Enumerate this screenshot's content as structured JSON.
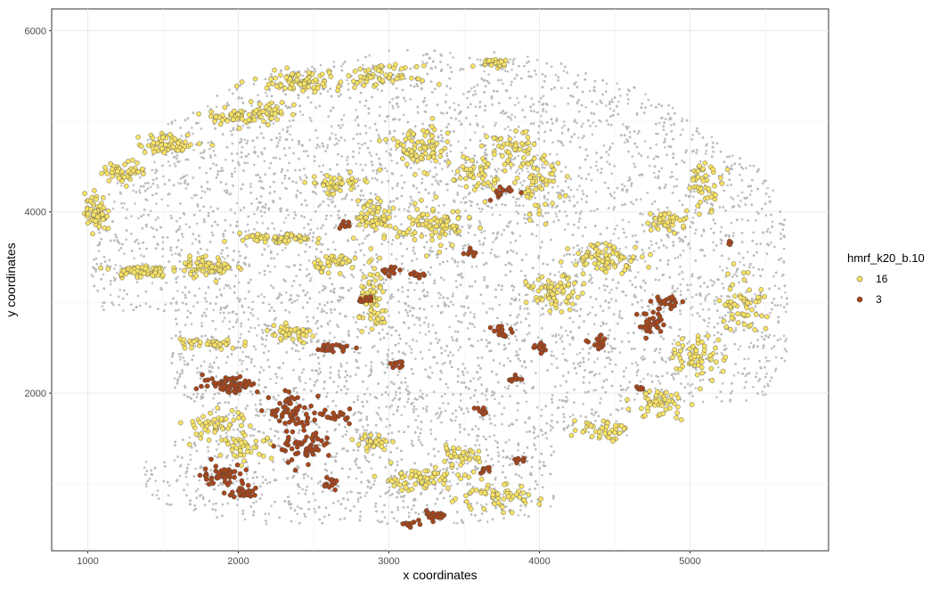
{
  "chart_data": {
    "type": "scatter",
    "title": "",
    "xlabel": "x coordinates",
    "ylabel": "y coordinates",
    "xlim": [
      760,
      5920
    ],
    "ylim": [
      260,
      6240
    ],
    "x_ticks": [
      1000,
      2000,
      3000,
      4000,
      5000
    ],
    "y_ticks": [
      2000,
      4000,
      6000
    ],
    "grid": true,
    "legend": {
      "title": "hmrf_k20_b.10",
      "placement": "right",
      "entries": [
        {
          "label": "16",
          "color": "#f7e266"
        },
        {
          "label": "3",
          "color": "#a6461c"
        }
      ]
    },
    "background_points": {
      "color": "#c9c9c9",
      "description_note": "other cells (not in legend)",
      "approx_count": 18000
    },
    "series": [
      {
        "name": "16",
        "color": "#f7e266",
        "regions": [
          {
            "x": 1050,
            "y": 4000,
            "sx": 60,
            "sy": 180,
            "n": 60
          },
          {
            "x": 1250,
            "y": 4450,
            "sx": 120,
            "sy": 90,
            "n": 50
          },
          {
            "x": 1550,
            "y": 4750,
            "sx": 180,
            "sy": 90,
            "n": 60
          },
          {
            "x": 1950,
            "y": 5050,
            "sx": 150,
            "sy": 70,
            "n": 45
          },
          {
            "x": 1350,
            "y": 3350,
            "sx": 150,
            "sy": 60,
            "n": 70
          },
          {
            "x": 1800,
            "y": 3400,
            "sx": 140,
            "sy": 90,
            "n": 70
          },
          {
            "x": 2250,
            "y": 3700,
            "sx": 200,
            "sy": 50,
            "n": 60
          },
          {
            "x": 2650,
            "y": 3450,
            "sx": 120,
            "sy": 80,
            "n": 40
          },
          {
            "x": 2900,
            "y": 3000,
            "sx": 80,
            "sy": 300,
            "n": 70
          },
          {
            "x": 2350,
            "y": 2650,
            "sx": 150,
            "sy": 80,
            "n": 45
          },
          {
            "x": 1800,
            "y": 2550,
            "sx": 180,
            "sy": 60,
            "n": 40
          },
          {
            "x": 2400,
            "y": 5450,
            "sx": 250,
            "sy": 90,
            "n": 80
          },
          {
            "x": 2950,
            "y": 5500,
            "sx": 200,
            "sy": 90,
            "n": 60
          },
          {
            "x": 2200,
            "y": 5100,
            "sx": 120,
            "sy": 100,
            "n": 40
          },
          {
            "x": 3200,
            "y": 4700,
            "sx": 180,
            "sy": 200,
            "n": 80
          },
          {
            "x": 2650,
            "y": 4300,
            "sx": 150,
            "sy": 100,
            "n": 50
          },
          {
            "x": 2900,
            "y": 3950,
            "sx": 100,
            "sy": 150,
            "n": 60
          },
          {
            "x": 3300,
            "y": 3850,
            "sx": 200,
            "sy": 200,
            "n": 90
          },
          {
            "x": 3600,
            "y": 4400,
            "sx": 150,
            "sy": 200,
            "n": 50
          },
          {
            "x": 3800,
            "y": 4700,
            "sx": 120,
            "sy": 160,
            "n": 45
          },
          {
            "x": 4000,
            "y": 4300,
            "sx": 120,
            "sy": 300,
            "n": 60
          },
          {
            "x": 4100,
            "y": 3100,
            "sx": 150,
            "sy": 150,
            "n": 70
          },
          {
            "x": 4450,
            "y": 3500,
            "sx": 200,
            "sy": 130,
            "n": 80
          },
          {
            "x": 4850,
            "y": 3900,
            "sx": 120,
            "sy": 100,
            "n": 40
          },
          {
            "x": 5100,
            "y": 4300,
            "sx": 100,
            "sy": 200,
            "n": 45
          },
          {
            "x": 5350,
            "y": 3000,
            "sx": 120,
            "sy": 300,
            "n": 60
          },
          {
            "x": 5050,
            "y": 2400,
            "sx": 150,
            "sy": 200,
            "n": 60
          },
          {
            "x": 4800,
            "y": 1900,
            "sx": 150,
            "sy": 150,
            "n": 50
          },
          {
            "x": 4400,
            "y": 1600,
            "sx": 150,
            "sy": 100,
            "n": 40
          },
          {
            "x": 3200,
            "y": 1050,
            "sx": 250,
            "sy": 100,
            "n": 70
          },
          {
            "x": 3700,
            "y": 850,
            "sx": 250,
            "sy": 120,
            "n": 60
          },
          {
            "x": 3450,
            "y": 1300,
            "sx": 120,
            "sy": 80,
            "n": 35
          },
          {
            "x": 1850,
            "y": 1650,
            "sx": 180,
            "sy": 150,
            "n": 55
          },
          {
            "x": 2050,
            "y": 1400,
            "sx": 150,
            "sy": 100,
            "n": 40
          },
          {
            "x": 2900,
            "y": 1450,
            "sx": 100,
            "sy": 80,
            "n": 30
          },
          {
            "x": 3700,
            "y": 5650,
            "sx": 100,
            "sy": 40,
            "n": 25
          }
        ]
      },
      {
        "name": "3",
        "color": "#a6461c",
        "regions": [
          {
            "x": 1950,
            "y": 2100,
            "sx": 150,
            "sy": 80,
            "n": 70
          },
          {
            "x": 1900,
            "y": 1100,
            "sx": 120,
            "sy": 100,
            "n": 45
          },
          {
            "x": 2050,
            "y": 900,
            "sx": 80,
            "sy": 50,
            "n": 30
          },
          {
            "x": 2350,
            "y": 1800,
            "sx": 120,
            "sy": 160,
            "n": 60
          },
          {
            "x": 2450,
            "y": 1400,
            "sx": 150,
            "sy": 150,
            "n": 60
          },
          {
            "x": 2650,
            "y": 1750,
            "sx": 80,
            "sy": 60,
            "n": 20
          },
          {
            "x": 2620,
            "y": 2500,
            "sx": 100,
            "sy": 40,
            "n": 25
          },
          {
            "x": 2620,
            "y": 1000,
            "sx": 50,
            "sy": 60,
            "n": 15
          },
          {
            "x": 3050,
            "y": 2330,
            "sx": 40,
            "sy": 40,
            "n": 10
          },
          {
            "x": 3000,
            "y": 3350,
            "sx": 60,
            "sy": 40,
            "n": 15
          },
          {
            "x": 3200,
            "y": 3300,
            "sx": 50,
            "sy": 30,
            "n": 10
          },
          {
            "x": 2700,
            "y": 3850,
            "sx": 40,
            "sy": 30,
            "n": 10
          },
          {
            "x": 2840,
            "y": 3030,
            "sx": 40,
            "sy": 30,
            "n": 10
          },
          {
            "x": 3550,
            "y": 3550,
            "sx": 40,
            "sy": 40,
            "n": 10
          },
          {
            "x": 3750,
            "y": 4200,
            "sx": 60,
            "sy": 60,
            "n": 20
          },
          {
            "x": 3750,
            "y": 2700,
            "sx": 50,
            "sy": 60,
            "n": 15
          },
          {
            "x": 3600,
            "y": 1800,
            "sx": 40,
            "sy": 40,
            "n": 10
          },
          {
            "x": 3850,
            "y": 2150,
            "sx": 60,
            "sy": 30,
            "n": 12
          },
          {
            "x": 4000,
            "y": 2500,
            "sx": 50,
            "sy": 50,
            "n": 15
          },
          {
            "x": 4400,
            "y": 2550,
            "sx": 50,
            "sy": 60,
            "n": 15
          },
          {
            "x": 4750,
            "y": 2750,
            "sx": 80,
            "sy": 120,
            "n": 35
          },
          {
            "x": 4850,
            "y": 3000,
            "sx": 80,
            "sy": 80,
            "n": 25
          },
          {
            "x": 3300,
            "y": 650,
            "sx": 80,
            "sy": 50,
            "n": 25
          },
          {
            "x": 3120,
            "y": 550,
            "sx": 40,
            "sy": 30,
            "n": 10
          },
          {
            "x": 3880,
            "y": 1250,
            "sx": 40,
            "sy": 30,
            "n": 10
          },
          {
            "x": 3650,
            "y": 1150,
            "sx": 40,
            "sy": 30,
            "n": 8
          },
          {
            "x": 5250,
            "y": 3650,
            "sx": 20,
            "sy": 30,
            "n": 6
          },
          {
            "x": 4650,
            "y": 2050,
            "sx": 30,
            "sy": 30,
            "n": 6
          }
        ]
      }
    ]
  }
}
